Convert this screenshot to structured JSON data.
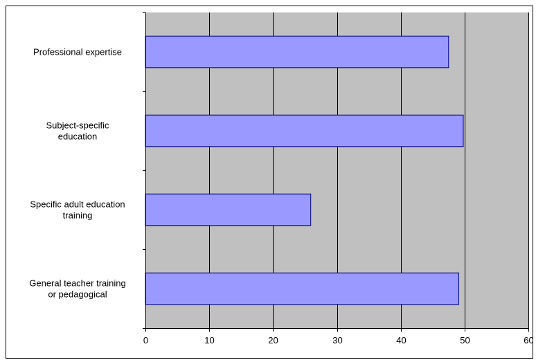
{
  "chart_data": {
    "type": "bar",
    "orientation": "horizontal",
    "title": "",
    "xlabel": "",
    "ylabel": "",
    "categories": [
      "Professional expertise",
      "Subject-specific education",
      "Specific adult education training",
      "General teacher training or pedagogical"
    ],
    "category_label_lines": [
      [
        "Professional expertise"
      ],
      [
        "Subject-specific",
        "education"
      ],
      [
        "Specific adult education",
        "training"
      ],
      [
        "General teacher training",
        "or pedagogical"
      ]
    ],
    "values": [
      47.5,
      49.8,
      25.9,
      49.1
    ],
    "xlim": [
      0,
      60
    ],
    "xticks": [
      0,
      10,
      20,
      30,
      40,
      50,
      60
    ],
    "grid": true,
    "legend": "none",
    "colors": {
      "bar_fill": "#9999ff",
      "bar_stroke": "#000080",
      "plot_background": "#c0c0c0",
      "gridline": "#000000",
      "axis": "#000000"
    }
  }
}
